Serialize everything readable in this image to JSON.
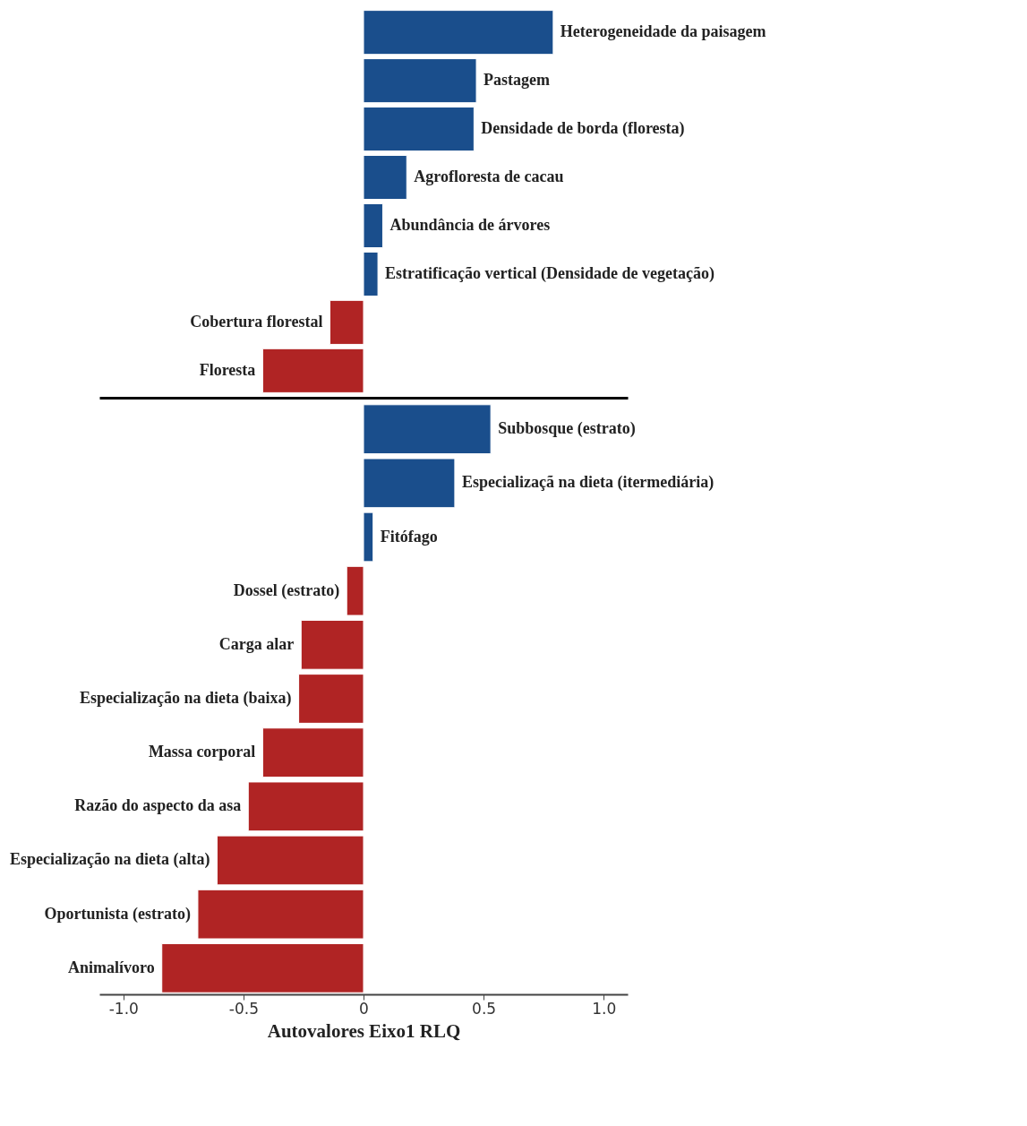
{
  "chart_data": [
    {
      "type": "bar",
      "orientation": "horizontal",
      "categories": [
        "Heterogeneidade da paisagem",
        "Pastagem",
        "Densidade de borda (floresta)",
        "Agrofloresta de cacau",
        "Abundância de árvores",
        "Estratificação vertical (Densidade de vegetação)",
        "Cobertura florestal",
        "Floresta"
      ],
      "values": [
        0.79,
        0.47,
        0.46,
        0.18,
        0.08,
        0.06,
        -0.14,
        -0.42
      ],
      "colors": [
        "#1a4e8c",
        "#1a4e8c",
        "#1a4e8c",
        "#1a4e8c",
        "#1a4e8c",
        "#1a4e8c",
        "#b02424",
        "#b02424"
      ],
      "xlim": [
        -1.1,
        1.1
      ],
      "tick_labels": false
    },
    {
      "type": "bar",
      "orientation": "horizontal",
      "categories": [
        "Subbosque (estrato)",
        "Especializaçã na dieta (itermediária)",
        "Fitófago",
        "Dossel (estrato)",
        "Carga alar",
        "Especialização na dieta (baixa)",
        "Massa corporal",
        "Razão do aspecto da asa",
        "Especialização na dieta (alta)",
        "Oportunista (estrato)",
        "Animalívoro"
      ],
      "values": [
        0.53,
        0.38,
        0.04,
        -0.07,
        -0.26,
        -0.27,
        -0.42,
        -0.48,
        -0.61,
        -0.69,
        -0.84
      ],
      "colors": [
        "#1a4e8c",
        "#1a4e8c",
        "#1a4e8c",
        "#b02424",
        "#b02424",
        "#b02424",
        "#b02424",
        "#b02424",
        "#b02424",
        "#b02424",
        "#b02424"
      ],
      "xlim": [
        -1.1,
        1.1
      ],
      "xticks": [
        {
          "value": -1,
          "label": "-1.0"
        },
        -0.5,
        0,
        0.5,
        {
          "value": 1,
          "label": "1.0"
        }
      ],
      "tick_labels": "x",
      "xlabel": "Autovalores Eixo1 RLQ"
    }
  ]
}
